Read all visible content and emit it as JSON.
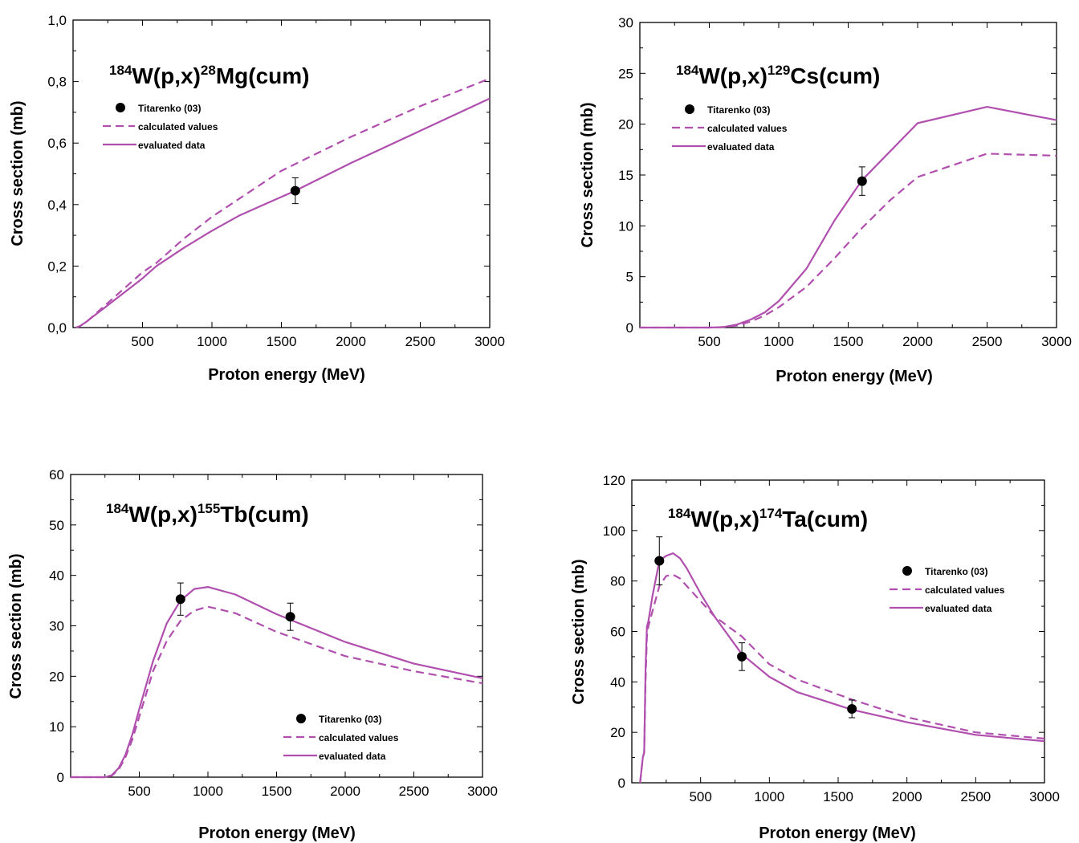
{
  "colors": {
    "curve": "#b04fae",
    "point": "#000000",
    "axis": "#000000"
  },
  "chart_data": [
    {
      "type": "line",
      "title": {
        "sup1": "184",
        "main1": "W(p,x)",
        "sup2": "28",
        "main2": "Mg(cum)"
      },
      "xlabel": "Proton energy (MeV)",
      "ylabel": "Cross section (mb)",
      "xlim": [
        0,
        3000
      ],
      "ylim": [
        0,
        1.0
      ],
      "xticks": [
        500,
        1000,
        1500,
        2000,
        2500,
        3000
      ],
      "xtick_labels": [
        "500",
        "1000",
        "1500",
        "2000",
        "2500",
        "3000"
      ],
      "yticks": [
        0,
        0.2,
        0.4,
        0.6,
        0.8,
        1.0
      ],
      "ytick_labels": [
        "0,0",
        "0,2",
        "0,4",
        "0,6",
        "0,8",
        "1,0"
      ],
      "legend": [
        "Titarenko (03)",
        "calculated values",
        "evaluated data"
      ],
      "legend_position": "upper-left",
      "series": [
        {
          "name": "calculated values",
          "style": "dashed",
          "x": [
            20,
            50,
            100,
            150,
            200,
            300,
            400,
            500,
            600,
            800,
            1000,
            1200,
            1500,
            2000,
            2500,
            3000
          ],
          "y": [
            0,
            0.005,
            0.02,
            0.04,
            0.06,
            0.1,
            0.14,
            0.18,
            0.21,
            0.29,
            0.36,
            0.42,
            0.51,
            0.62,
            0.72,
            0.81
          ]
        },
        {
          "name": "evaluated data",
          "style": "solid",
          "x": [
            20,
            50,
            100,
            150,
            200,
            300,
            400,
            500,
            600,
            800,
            1000,
            1200,
            1500,
            1600,
            2000,
            2500,
            3000
          ],
          "y": [
            0,
            0.005,
            0.02,
            0.038,
            0.055,
            0.09,
            0.125,
            0.16,
            0.2,
            0.26,
            0.315,
            0.365,
            0.425,
            0.445,
            0.535,
            0.64,
            0.745
          ]
        }
      ],
      "points": {
        "name": "Titarenko (03)",
        "x": [
          1600
        ],
        "y": [
          0.445
        ],
        "err": [
          0.042
        ]
      }
    },
    {
      "type": "line",
      "title": {
        "sup1": "184",
        "main1": "W(p,x)",
        "sup2": "129",
        "main2": "Cs(cum)"
      },
      "xlabel": "Proton energy (MeV)",
      "ylabel": "Cross section (mb)",
      "xlim": [
        0,
        3000
      ],
      "ylim": [
        0,
        30
      ],
      "xticks": [
        500,
        1000,
        1500,
        2000,
        2500,
        3000
      ],
      "xtick_labels": [
        "500",
        "1000",
        "1500",
        "2000",
        "2500",
        "3000"
      ],
      "yticks": [
        0,
        5,
        10,
        15,
        20,
        25,
        30
      ],
      "ytick_labels": [
        "0",
        "5",
        "10",
        "15",
        "20",
        "25",
        "30"
      ],
      "legend": [
        "Titarenko (03)",
        "calculated values",
        "evaluated data"
      ],
      "legend_position": "upper-left",
      "series": [
        {
          "name": "calculated values",
          "style": "dashed",
          "x": [
            0,
            500,
            600,
            700,
            800,
            900,
            1000,
            1200,
            1400,
            1600,
            1800,
            2000,
            2500,
            3000
          ],
          "y": [
            0,
            0,
            0.05,
            0.2,
            0.6,
            1.2,
            2.0,
            4.0,
            6.8,
            9.8,
            12.5,
            14.8,
            17.1,
            16.9
          ]
        },
        {
          "name": "evaluated data",
          "style": "solid",
          "x": [
            0,
            500,
            600,
            700,
            800,
            900,
            1000,
            1200,
            1400,
            1600,
            2000,
            2500,
            3000
          ],
          "y": [
            0,
            0,
            0.05,
            0.3,
            0.8,
            1.5,
            2.6,
            5.8,
            10.5,
            14.5,
            20.1,
            21.7,
            20.4
          ]
        }
      ],
      "points": {
        "name": "Titarenko (03)",
        "x": [
          1600
        ],
        "y": [
          14.4
        ],
        "err": [
          1.4
        ]
      }
    },
    {
      "type": "line",
      "title": {
        "sup1": "184",
        "main1": "W(p,x)",
        "sup2": "155",
        "main2": "Tb(cum)"
      },
      "xlabel": "Proton energy (MeV)",
      "ylabel": "Cross section (mb)",
      "xlim": [
        0,
        3000
      ],
      "ylim": [
        0,
        60
      ],
      "xticks": [
        500,
        1000,
        1500,
        2000,
        2500,
        3000
      ],
      "xtick_labels": [
        "500",
        "1000",
        "1500",
        "2000",
        "2500",
        "3000"
      ],
      "yticks": [
        0,
        10,
        20,
        30,
        40,
        50,
        60
      ],
      "ytick_labels": [
        "0",
        "10",
        "20",
        "30",
        "40",
        "50",
        "60"
      ],
      "legend": [
        "Titarenko (03)",
        "calculated values",
        "evaluated data"
      ],
      "legend_position": "lower-center",
      "series": [
        {
          "name": "calculated values",
          "style": "dashed",
          "x": [
            0,
            250,
            300,
            350,
            400,
            450,
            500,
            600,
            700,
            800,
            900,
            1000,
            1200,
            1500,
            2000,
            2500,
            3000
          ],
          "y": [
            0,
            0,
            0.3,
            1.5,
            4.0,
            7.5,
            12.0,
            21.0,
            27.0,
            31.0,
            33.0,
            33.8,
            32.5,
            28.8,
            24.0,
            21.0,
            18.6
          ]
        },
        {
          "name": "evaluated data",
          "style": "solid",
          "x": [
            0,
            250,
            300,
            350,
            400,
            450,
            500,
            600,
            700,
            800,
            900,
            1000,
            1200,
            1500,
            2000,
            2500,
            3000
          ],
          "y": [
            0,
            0,
            0.4,
            1.8,
            4.5,
            8.5,
            13.5,
            23.0,
            30.5,
            35.0,
            37.3,
            37.7,
            36.2,
            32.3,
            26.8,
            22.5,
            19.6
          ]
        }
      ],
      "points": {
        "name": "Titarenko (03)",
        "x": [
          800,
          1600
        ],
        "y": [
          35.3,
          31.8
        ],
        "err": [
          3.2,
          2.7
        ]
      }
    },
    {
      "type": "line",
      "title": {
        "sup1": "184",
        "main1": "W(p,x)",
        "sup2": "174",
        "main2": "Ta(cum)"
      },
      "xlabel": "Proton energy (MeV)",
      "ylabel": "Cross section (mb)",
      "xlim": [
        0,
        3000
      ],
      "ylim": [
        0,
        120
      ],
      "xticks": [
        500,
        1000,
        1500,
        2000,
        2500,
        3000
      ],
      "xtick_labels": [
        "500",
        "1000",
        "1500",
        "2000",
        "2500",
        "3000"
      ],
      "yticks": [
        0,
        20,
        40,
        60,
        80,
        100,
        120
      ],
      "ytick_labels": [
        "0",
        "20",
        "40",
        "60",
        "80",
        "100",
        "120"
      ],
      "legend": [
        "Titarenko (03)",
        "calculated values",
        "evaluated data"
      ],
      "legend_position": "right",
      "series": [
        {
          "name": "calculated values",
          "style": "dashed",
          "x": [
            60,
            80,
            90,
            100,
            110,
            120,
            150,
            200,
            250,
            300,
            350,
            400,
            500,
            600,
            800,
            1000,
            1200,
            1600,
            2000,
            2500,
            3000
          ],
          "y": [
            0,
            10,
            12,
            40,
            58,
            62,
            68,
            78,
            82,
            82.5,
            81,
            78,
            72,
            66,
            58,
            47,
            41,
            33,
            26,
            20,
            17.5
          ]
        },
        {
          "name": "evaluated data",
          "style": "solid",
          "x": [
            60,
            80,
            90,
            100,
            110,
            120,
            150,
            200,
            250,
            300,
            350,
            400,
            500,
            600,
            800,
            1000,
            1200,
            1600,
            2000,
            2500,
            3000
          ],
          "y": [
            0,
            10,
            12,
            45,
            62,
            64,
            74,
            88,
            90,
            91,
            89,
            85,
            75,
            66,
            51,
            42,
            36,
            29,
            24,
            19,
            16.5
          ]
        }
      ],
      "points": {
        "name": "Titarenko (03)",
        "x": [
          200,
          800,
          1600
        ],
        "y": [
          88,
          50,
          29.3
        ],
        "err": [
          9.5,
          5.5,
          3.5
        ]
      }
    }
  ]
}
